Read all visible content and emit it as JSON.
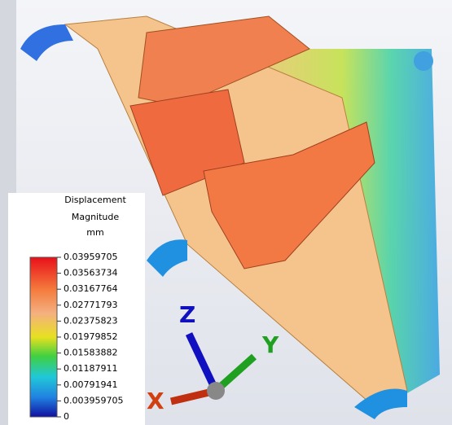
{
  "legend": {
    "title": [
      "Displacement",
      "Magnitude",
      "mm"
    ],
    "ticks": [
      "0.03959705",
      "0.03563734",
      "0.03167764",
      "0.02771793",
      "0.02375823",
      "0.01979852",
      "0.01583882",
      "0.01187911",
      "0.00791941",
      "0.003959705",
      "0"
    ]
  },
  "triad": {
    "x": "X",
    "y": "Y",
    "z": "Z"
  }
}
